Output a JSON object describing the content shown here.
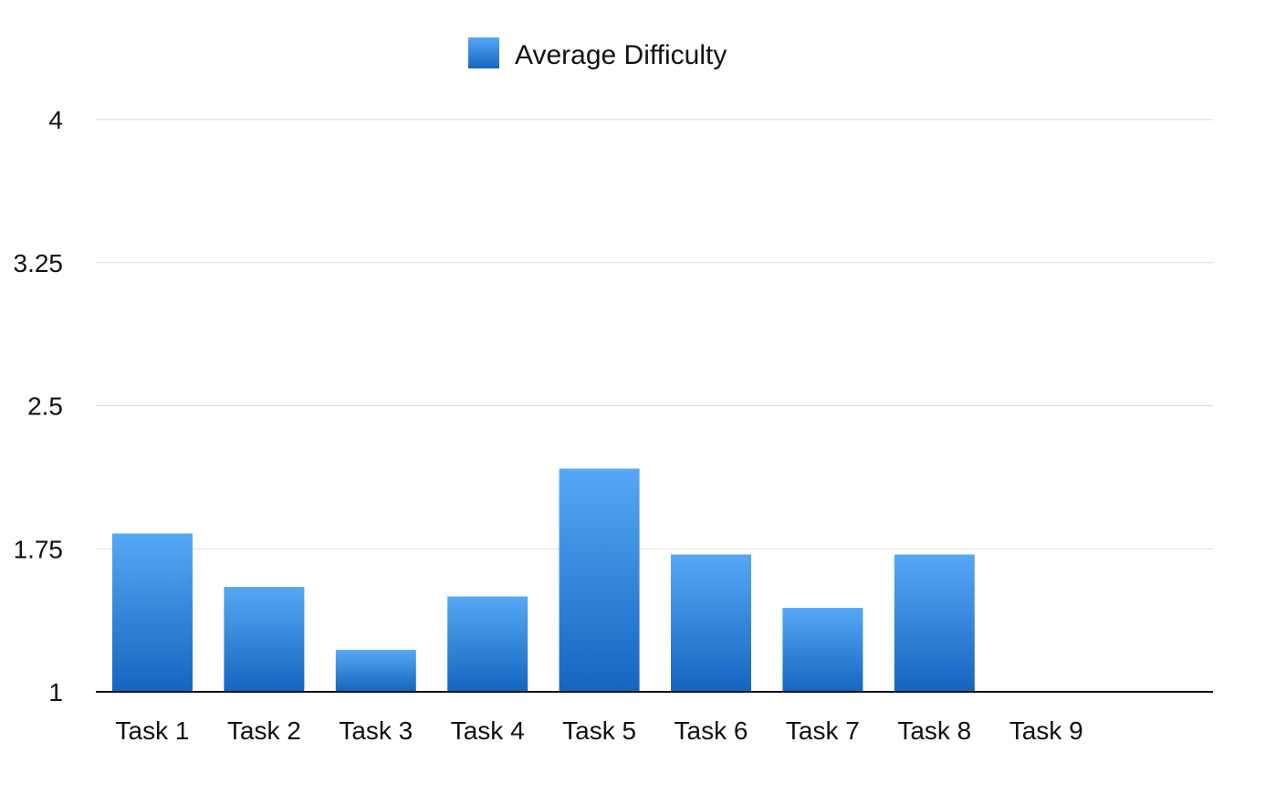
{
  "chart_data": {
    "type": "bar",
    "categories": [
      "Task 1",
      "Task 2",
      "Task 3",
      "Task 4",
      "Task 5",
      "Task 6",
      "Task 7",
      "Task 8",
      "Task 9"
    ],
    "series": [
      {
        "name": "Average Difficulty",
        "values": [
          1.83,
          1.55,
          1.22,
          1.5,
          2.17,
          1.72,
          1.44,
          1.72,
          null
        ]
      }
    ],
    "yticks": [
      "1",
      "1.75",
      "2.5",
      "3.25",
      "4"
    ],
    "ylim": [
      1,
      4
    ],
    "grid": true,
    "legend_position": "top-center",
    "colors": {
      "bar_top": "#56a8f5",
      "bar_bottom": "#1565c0",
      "legend_swatch": "#2a7fd6",
      "grid": "#d9d9d9",
      "axis": "#111111"
    }
  }
}
